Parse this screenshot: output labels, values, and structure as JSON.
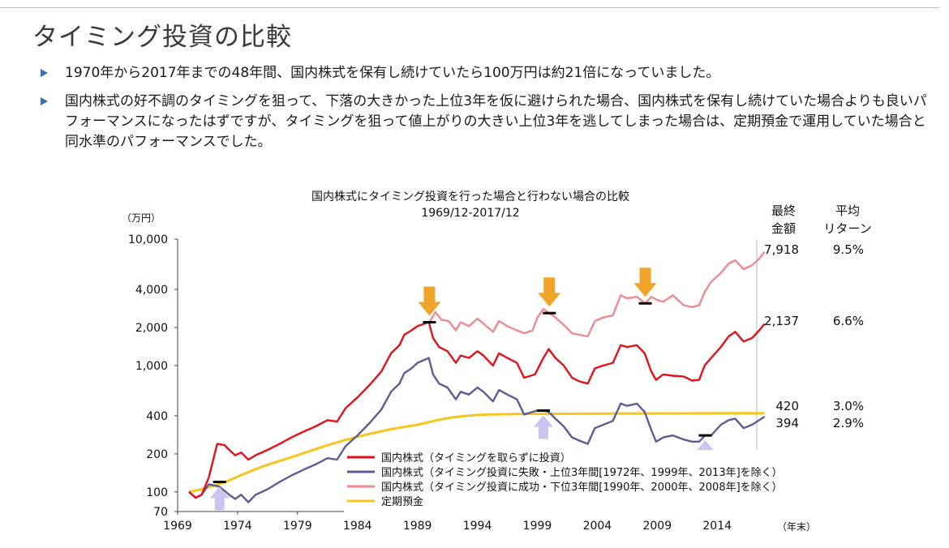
{
  "slide": {
    "title": "タイミング投資の比較",
    "bullets": [
      "1970年から2017年までの48年間、国内株式を保有し続けていたら100万円は約21倍になっていました。",
      "国内株式の好不調のタイミングを狙って、下落の大きかった上位3年を仮に避けられた場合、国内株式を保有し続けていた場合よりも良いパフォーマンスになったはずですが、タイミングを狙って値上がりの大きい上位3年を逃してしまった場合は、定期預金で運用していた場合と同水準のパフォーマンスでした。"
    ]
  },
  "chart_data": {
    "type": "line",
    "title": "国内株式にタイミング投資を行った場合と行わない場合の比較",
    "subtitle": "1969/12-2017/12",
    "y_unit_label": "（万円）",
    "x_unit_label": "（年末）",
    "y_scale": "log",
    "ylim": [
      70,
      10000
    ],
    "y_ticks": [
      {
        "v": 10000,
        "label": "10,000"
      },
      {
        "v": 4000,
        "label": "4,000"
      },
      {
        "v": 2000,
        "label": "2,000"
      },
      {
        "v": 1000,
        "label": "1,000"
      },
      {
        "v": 400,
        "label": "400"
      },
      {
        "v": 200,
        "label": "200"
      },
      {
        "v": 100,
        "label": "100"
      },
      {
        "v": 70,
        "label": "70"
      }
    ],
    "xlim": [
      1969,
      2017.3
    ],
    "x_ticks": [
      "1969",
      "1974",
      "1979",
      "1984",
      "1989",
      "1994",
      "1999",
      "2004",
      "2009",
      "2014"
    ],
    "grid": false,
    "legend_position": "bottom-center",
    "table_headers": {
      "final": "最終\n金額",
      "return": "平均\nリターン"
    },
    "end_values": [
      {
        "series": "国内株式（タイミング投資に成功・下位3年間[1990年、2000年、2008年]を除く）",
        "final": "7,918",
        "ret": "9.5%",
        "y": 7918
      },
      {
        "series": "国内株式（タイミングを取らずに投資）",
        "final": "2,137",
        "ret": "6.6%",
        "y": 2137
      },
      {
        "series": "定期預金",
        "final": "420",
        "ret": "3.0%",
        "y": 420
      },
      {
        "series": "国内株式（タイミング投資に失敗・上位3年間[1972年、1999年、2013年]を除く）",
        "final": "394",
        "ret": "2.9%",
        "y": 394
      }
    ],
    "series": [
      {
        "name": "国内株式（タイミングを取らずに投資）",
        "color": "#e3121a",
        "x": [
          1969.95,
          1970.5,
          1971.0,
          1971.6,
          1972.3,
          1972.9,
          1973.3,
          1973.8,
          1974.3,
          1974.9,
          1975.5,
          1976.5,
          1977.5,
          1978.5,
          1979.5,
          1980.5,
          1981.5,
          1982.3,
          1983.0,
          1984.0,
          1985.0,
          1986.0,
          1986.8,
          1987.5,
          1987.9,
          1988.5,
          1989.0,
          1989.95,
          1990.3,
          1990.8,
          1991.5,
          1992.2,
          1992.6,
          1993.3,
          1994.0,
          1994.5,
          1995.3,
          1995.8,
          1996.5,
          1997.3,
          1997.9,
          1998.8,
          1999.5,
          1999.95,
          2000.5,
          2001.2,
          2001.9,
          2002.5,
          2003.2,
          2003.8,
          2004.5,
          2005.3,
          2005.95,
          2006.5,
          2007.3,
          2007.95,
          2008.5,
          2008.9,
          2009.5,
          2010.3,
          2011.2,
          2011.9,
          2012.5,
          2012.95,
          2013.5,
          2014.3,
          2014.95,
          2015.5,
          2016.2,
          2016.9,
          2017.5,
          2017.95
        ],
        "y": [
          100,
          90,
          95,
          130,
          240,
          235,
          215,
          195,
          205,
          180,
          195,
          215,
          240,
          270,
          300,
          330,
          370,
          360,
          460,
          560,
          700,
          900,
          1250,
          1450,
          1750,
          1900,
          2050,
          2200,
          1650,
          1400,
          1300,
          1050,
          1200,
          1150,
          1300,
          1200,
          1000,
          1250,
          1150,
          1050,
          800,
          850,
          1150,
          1350,
          1150,
          1000,
          800,
          750,
          720,
          950,
          1000,
          1050,
          1450,
          1400,
          1450,
          1250,
          900,
          770,
          850,
          830,
          820,
          760,
          770,
          1000,
          1150,
          1400,
          1700,
          1850,
          1550,
          1650,
          1900,
          2137
        ]
      },
      {
        "name": "国内株式（タイミング投資に失敗・上位3年間[1972年、1999年、2013年]を除く）",
        "color": "#5b5e96",
        "x": [
          1969.95,
          1970.5,
          1971.0,
          1971.6,
          1972.5,
          1973.3,
          1973.8,
          1974.3,
          1974.9,
          1975.5,
          1976.5,
          1977.5,
          1978.5,
          1979.5,
          1980.5,
          1981.5,
          1982.3,
          1983.0,
          1984.0,
          1985.0,
          1986.0,
          1986.8,
          1987.5,
          1987.9,
          1988.5,
          1989.0,
          1989.95,
          1990.3,
          1990.8,
          1991.5,
          1992.2,
          1992.6,
          1993.3,
          1994.0,
          1994.5,
          1995.3,
          1995.8,
          1996.5,
          1997.3,
          1997.9,
          1998.6,
          1999.0,
          1999.5,
          1999.95,
          2000.5,
          2001.2,
          2001.9,
          2002.5,
          2003.2,
          2003.8,
          2004.5,
          2005.3,
          2005.95,
          2006.5,
          2007.3,
          2007.95,
          2008.5,
          2008.9,
          2009.5,
          2010.3,
          2011.2,
          2011.9,
          2012.5,
          2013.0,
          2013.5,
          2014.3,
          2014.95,
          2015.5,
          2016.2,
          2016.9,
          2017.5,
          2017.95
        ],
        "y": [
          100,
          90,
          95,
          115,
          110,
          95,
          88,
          95,
          83,
          95,
          105,
          120,
          135,
          150,
          165,
          185,
          180,
          230,
          280,
          350,
          450,
          620,
          720,
          870,
          950,
          1050,
          1150,
          850,
          720,
          670,
          540,
          620,
          590,
          670,
          620,
          520,
          640,
          590,
          540,
          410,
          430,
          440,
          440,
          430,
          380,
          330,
          270,
          255,
          240,
          320,
          340,
          365,
          500,
          480,
          500,
          430,
          310,
          250,
          270,
          280,
          260,
          250,
          250,
          280,
          280,
          340,
          370,
          380,
          320,
          340,
          370,
          394
        ]
      },
      {
        "name": "国内株式（タイミング投資に成功・下位3年間[1990年、2000年、2008年]を除く）",
        "color": "#f08a8e",
        "x": [
          1990.0,
          1990.5,
          1991.0,
          1991.6,
          1992.2,
          1992.6,
          1993.3,
          1994.0,
          1994.5,
          1995.3,
          1995.8,
          1996.5,
          1997.3,
          1997.9,
          1998.6,
          1999.0,
          1999.5,
          2000.0,
          2000.5,
          2001.2,
          2001.9,
          2002.5,
          2003.2,
          2003.8,
          2004.5,
          2005.3,
          2005.95,
          2006.5,
          2007.3,
          2008.0,
          2008.5,
          2009.0,
          2009.5,
          2010.3,
          2011.2,
          2011.9,
          2012.5,
          2013.0,
          2013.5,
          2014.3,
          2014.95,
          2015.5,
          2016.2,
          2016.9,
          2017.5,
          2017.95
        ],
        "y": [
          2200,
          2650,
          2300,
          2250,
          1900,
          2200,
          2050,
          2350,
          2150,
          1850,
          2250,
          2050,
          1900,
          1800,
          1900,
          2400,
          2800,
          2600,
          2400,
          2100,
          1800,
          1750,
          1700,
          2250,
          2400,
          2500,
          3600,
          3400,
          3500,
          3100,
          3500,
          3300,
          3200,
          3600,
          3000,
          2900,
          3000,
          3900,
          4600,
          5400,
          6400,
          6800,
          5800,
          6200,
          7000,
          7918
        ]
      },
      {
        "name": "定期預金",
        "color": "#f7c51b",
        "x": [
          1969.95,
          1971.0,
          1972.0,
          1973.0,
          1974.0,
          1975.0,
          1976.0,
          1977.0,
          1978.0,
          1979.0,
          1980.0,
          1981.0,
          1982.0,
          1983.0,
          1984.0,
          1985.0,
          1986.0,
          1987.0,
          1988.0,
          1989.0,
          1990.0,
          1991.0,
          1992.0,
          1993.0,
          1994.0,
          1995.0,
          1996.0,
          1998.0,
          2000.0,
          2005.0,
          2010.0,
          2015.0,
          2017.95
        ],
        "y": [
          100,
          105,
          112,
          120,
          132,
          145,
          158,
          170,
          182,
          195,
          210,
          226,
          242,
          258,
          273,
          288,
          302,
          316,
          328,
          340,
          358,
          376,
          390,
          400,
          406,
          410,
          412,
          414,
          415,
          417,
          418,
          419,
          420
        ]
      }
    ],
    "markers": [
      {
        "type": "avoid-arrow",
        "x": 1990.0,
        "y": 2200
      },
      {
        "type": "avoid-arrow",
        "x": 2000.0,
        "y": 2600
      },
      {
        "type": "avoid-arrow",
        "x": 2008.0,
        "y": 3100
      },
      {
        "type": "miss-arrow",
        "x": 1972.5,
        "y": 120
      },
      {
        "type": "miss-arrow",
        "x": 1999.5,
        "y": 440
      },
      {
        "type": "miss-arrow",
        "x": 2013.0,
        "y": 280
      }
    ]
  }
}
